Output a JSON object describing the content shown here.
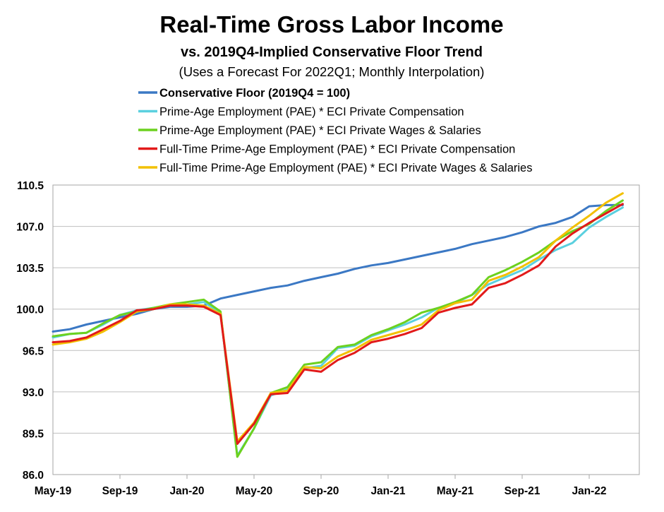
{
  "chart_data": {
    "type": "line",
    "title": "Real-Time Gross Labor Income",
    "subtitle": "vs. 2019Q4-Implied Conservative Floor Trend",
    "note": "(Uses a Forecast For 2022Q1; Monthly Interpolation)",
    "xlabel": "",
    "ylabel": "",
    "ylim": [
      86.0,
      110.5
    ],
    "yticks": [
      "110.5",
      "107.0",
      "103.5",
      "100.0",
      "96.5",
      "93.0",
      "89.5",
      "86.0"
    ],
    "ytick_values": [
      110.5,
      107.0,
      103.5,
      100.0,
      96.5,
      93.0,
      89.5,
      86.0
    ],
    "x_months": [
      "May-19",
      "Jun-19",
      "Jul-19",
      "Aug-19",
      "Sep-19",
      "Oct-19",
      "Nov-19",
      "Dec-19",
      "Jan-20",
      "Feb-20",
      "Mar-20",
      "Apr-20",
      "May-20",
      "Jun-20",
      "Jul-20",
      "Aug-20",
      "Sep-20",
      "Oct-20",
      "Nov-20",
      "Dec-20",
      "Jan-21",
      "Feb-21",
      "Mar-21",
      "Apr-21",
      "May-21",
      "Jun-21",
      "Jul-21",
      "Aug-21",
      "Sep-21",
      "Oct-21",
      "Nov-21",
      "Dec-21",
      "Jan-22",
      "Feb-22",
      "Mar-22"
    ],
    "xticks": [
      {
        "label": "May-19",
        "index": 0
      },
      {
        "label": "Sep-19",
        "index": 4
      },
      {
        "label": "Jan-20",
        "index": 8
      },
      {
        "label": "May-20",
        "index": 12
      },
      {
        "label": "Sep-20",
        "index": 16
      },
      {
        "label": "Jan-21",
        "index": 20
      },
      {
        "label": "May-21",
        "index": 24
      },
      {
        "label": "Sep-21",
        "index": 28
      },
      {
        "label": "Jan-22",
        "index": 32
      }
    ],
    "series": [
      {
        "name": "Conservative Floor (2019Q4 = 100)",
        "color": "#3b78c4",
        "bold": true,
        "values": [
          98.1,
          98.3,
          98.7,
          99.0,
          99.3,
          99.6,
          100.0,
          100.2,
          100.2,
          100.3,
          100.9,
          101.2,
          101.5,
          101.8,
          102.0,
          102.4,
          102.7,
          103.0,
          103.4,
          103.7,
          103.9,
          104.2,
          104.5,
          104.8,
          105.1,
          105.5,
          105.8,
          106.1,
          106.5,
          107.0,
          107.3,
          107.8,
          108.7,
          108.8,
          108.8
        ],
        "start_index": 0
      },
      {
        "name": "Prime-Age Employment (PAE) * ECI Private Compensation",
        "color": "#5bd0df",
        "bold": false,
        "values": [
          97.6,
          97.9,
          98.0,
          98.7,
          99.5,
          99.9,
          100.1,
          100.3,
          100.4,
          100.6,
          99.7,
          87.6,
          89.9,
          92.7,
          93.2,
          95.0,
          95.2,
          96.7,
          96.9,
          97.7,
          98.2,
          98.7,
          99.3,
          100.1,
          100.5,
          101.2,
          102.1,
          102.7,
          103.3,
          104.2,
          105.0,
          105.6,
          106.9,
          107.8,
          108.6
        ],
        "start_index": 0
      },
      {
        "name": "Prime-Age Employment (PAE) * ECI Private Wages & Salaries",
        "color": "#6cd11f",
        "bold": false,
        "values": [
          97.7,
          97.9,
          98.0,
          98.8,
          99.5,
          99.8,
          100.1,
          100.4,
          100.6,
          100.8,
          99.8,
          87.5,
          89.9,
          92.9,
          93.4,
          95.3,
          95.5,
          96.8,
          97.0,
          97.8,
          98.3,
          98.9,
          99.7,
          100.1,
          100.6,
          101.2,
          102.7,
          103.3,
          104.0,
          104.8,
          105.8,
          106.6,
          107.2,
          108.3,
          109.2
        ],
        "start_index": 0
      },
      {
        "name": "Full-Time Prime-Age Employment (PAE) * ECI Private Compensation",
        "color": "#e21a1a",
        "bold": false,
        "values": [
          97.2,
          97.3,
          97.6,
          98.3,
          99.0,
          99.9,
          100.0,
          100.3,
          100.3,
          100.2,
          99.5,
          88.6,
          90.3,
          92.8,
          92.9,
          94.9,
          94.7,
          95.7,
          96.3,
          97.2,
          97.5,
          97.9,
          98.4,
          99.7,
          100.1,
          100.4,
          101.8,
          102.2,
          102.9,
          103.7,
          105.3,
          106.4,
          107.3,
          108.1,
          108.9
        ],
        "start_index": 0
      },
      {
        "name": "Full-Time Prime-Age Employment (PAE) * ECI Private Wages & Salaries",
        "color": "#f2c000",
        "bold": false,
        "values": [
          97.0,
          97.2,
          97.5,
          98.1,
          98.9,
          99.8,
          100.0,
          100.4,
          100.4,
          100.3,
          99.6,
          88.8,
          90.4,
          92.9,
          93.1,
          95.1,
          95.0,
          96.0,
          96.6,
          97.4,
          97.8,
          98.2,
          98.7,
          99.9,
          100.5,
          100.8,
          102.4,
          102.9,
          103.6,
          104.4,
          105.8,
          106.9,
          107.9,
          109.0,
          109.8
        ],
        "start_index": 0
      }
    ]
  }
}
